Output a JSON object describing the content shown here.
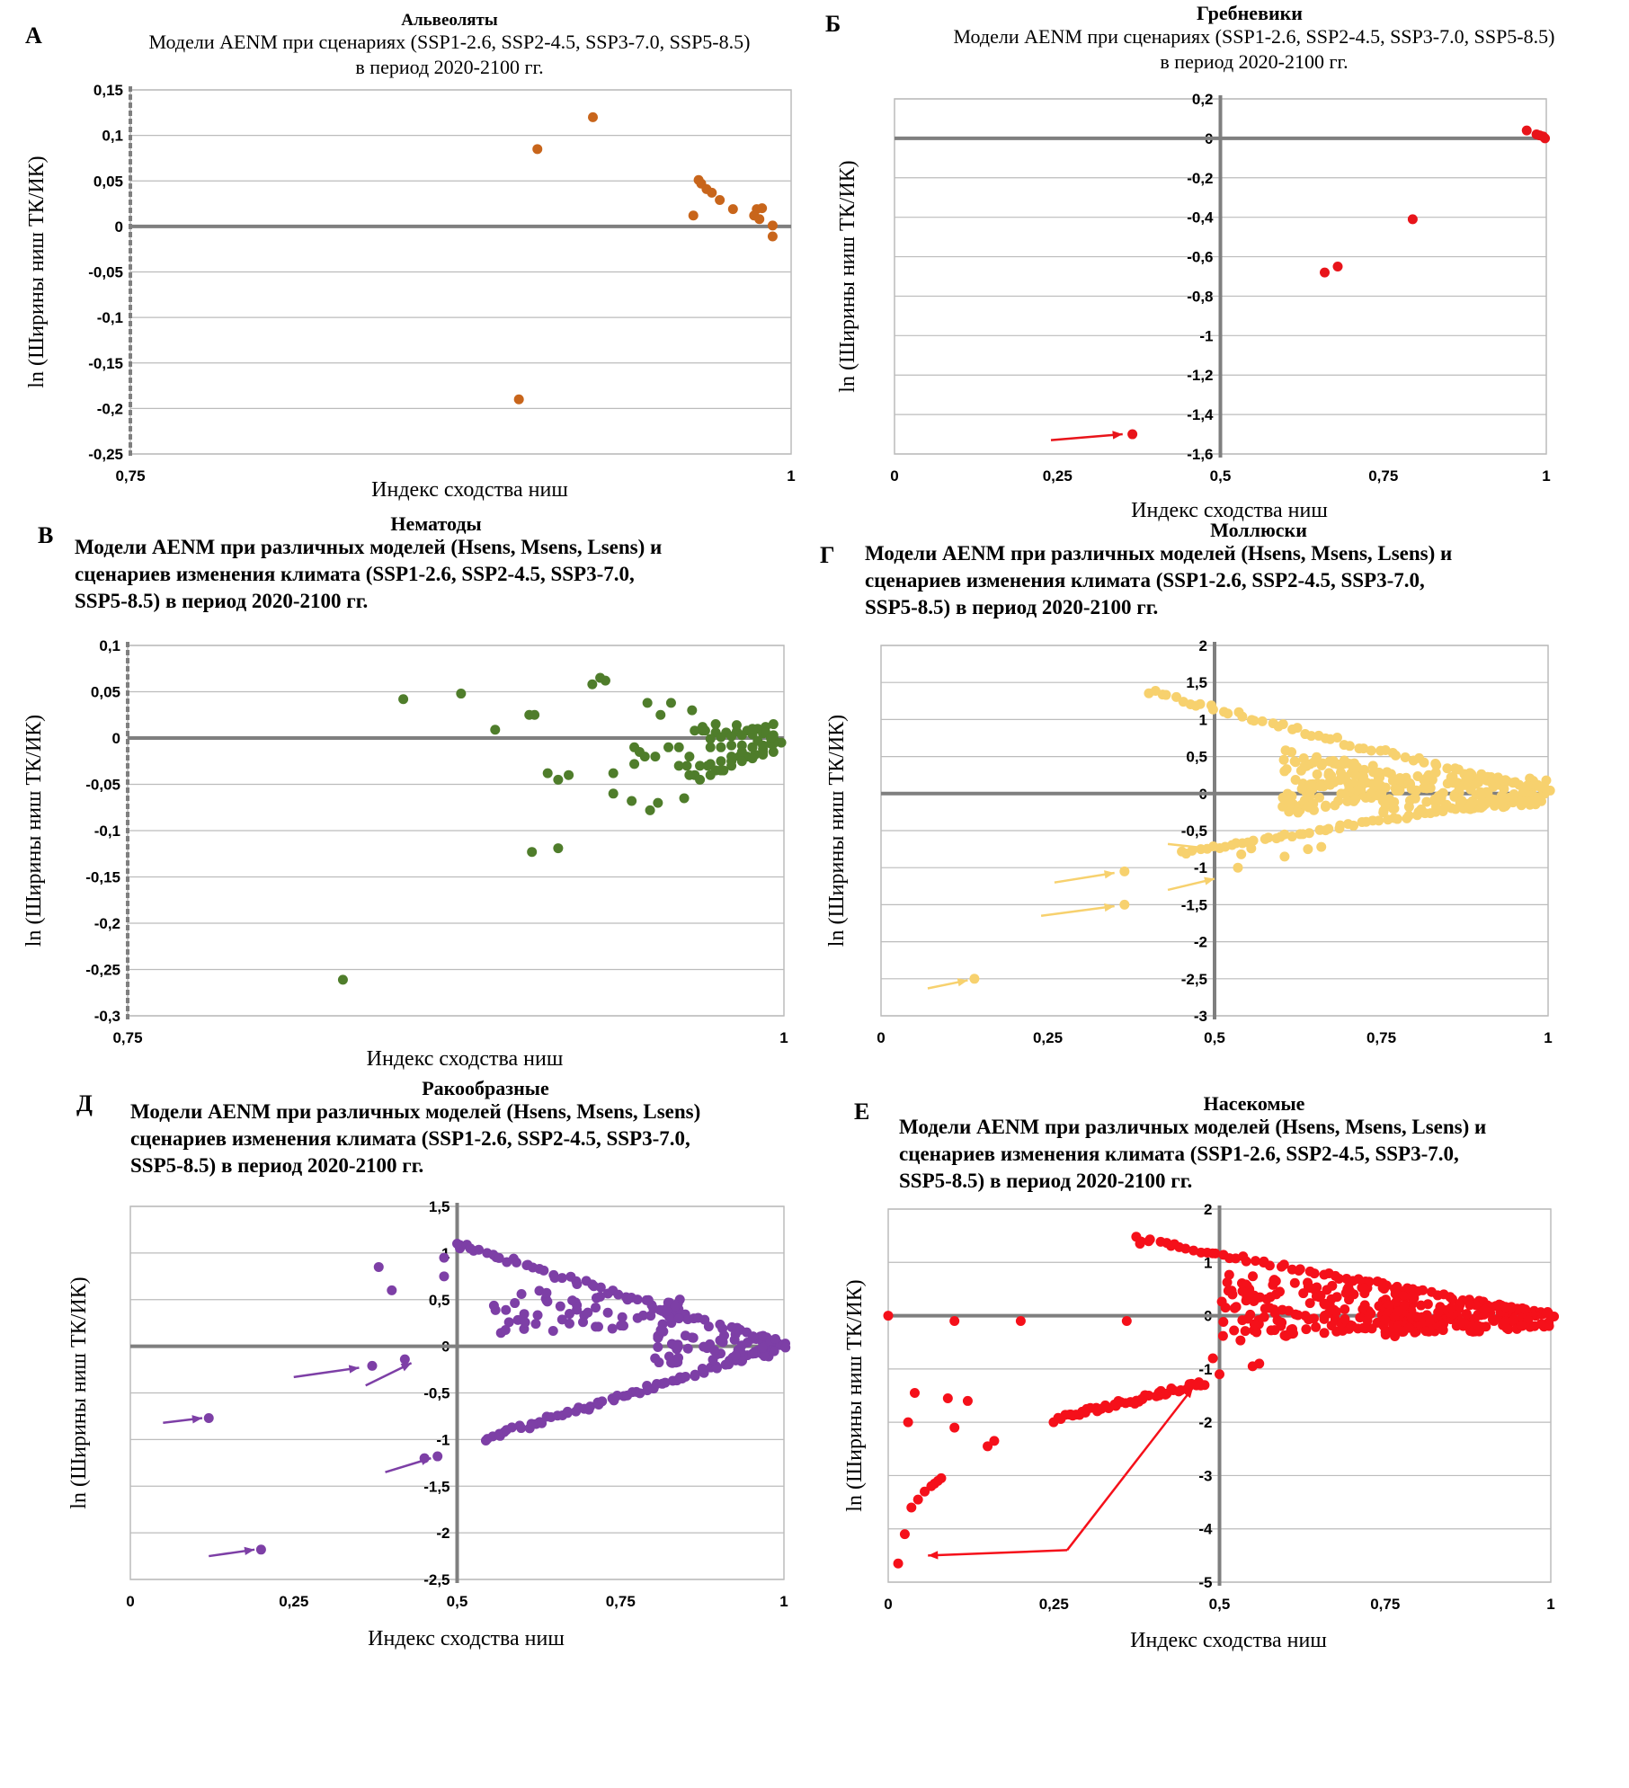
{
  "colors": {
    "gridline": "#bcbcbc",
    "axis": "#7f7f7f",
    "frame": "#bcbcbc",
    "alveolata": "#c8651b",
    "ctenophora": "#e8141a",
    "nematoda": "#4f7d2b",
    "mollusca": "#f7d16e",
    "crustacea": "#7d3fa6",
    "insecta": "#f5101a"
  },
  "chart_data": [
    {
      "panel": "А",
      "type": "scatter",
      "taxon": "Альвеоляты",
      "title_lines": [
        "Модели AENM при сценариях (SSP1-2.6, SSP2-4.5, SSP3-7.0, SSP5-8.5)",
        "в период 2020-2100 гг."
      ],
      "xlabel": "Индекс сходства ниш",
      "ylabel": "ln (Ширины ниш ТК/ИК)",
      "xlim": [
        0.75,
        1
      ],
      "ylim": [
        -0.25,
        0.15
      ],
      "x_ticks": [
        "0,75",
        "1"
      ],
      "y_ticks": [
        "0,15",
        "0,1",
        "0,05",
        "0",
        "-0,05",
        "-0,1",
        "-0,15",
        "-0,2",
        "-0,25"
      ],
      "y_axis_at_x": 0.75,
      "grid": true,
      "color_key": "alveolata",
      "x": [
        0.904,
        0.925,
        0.966,
        0.965,
        0.963,
        0.968,
        0.97,
        0.973,
        0.978,
        0.987,
        0.986,
        0.988,
        0.989,
        0.993,
        0.993,
        0.897
      ],
      "y": [
        0.085,
        0.12,
        0.047,
        0.051,
        0.012,
        0.041,
        0.037,
        0.029,
        0.019,
        0.019,
        0.012,
        0.008,
        0.02,
        0.001,
        -0.011,
        -0.19
      ],
      "arrows": []
    },
    {
      "panel": "Б",
      "type": "scatter",
      "taxon": "Гребневики",
      "title_lines": [
        "Модели AENM при сценариях (SSP1-2.6, SSP2-4.5, SSP3-7.0, SSP5-8.5)",
        "в период 2020-2100 гг."
      ],
      "xlabel": "Индекс сходства ниш",
      "ylabel": "ln (Ширины ниш ТК/ИК)",
      "xlim": [
        0,
        1
      ],
      "ylim": [
        -1.6,
        0.2
      ],
      "x_ticks": [
        "0",
        "0,25",
        "0,5",
        "0,75",
        "1"
      ],
      "y_ticks": [
        "0,2",
        "0",
        "-0,2",
        "-0,4",
        "-0,6",
        "-0,8",
        "-1",
        "-1,2",
        "-1,4",
        "-1,6"
      ],
      "y_axis_at_x": 0.5,
      "grid": true,
      "color_key": "ctenophora",
      "x": [
        0.97,
        0.985,
        0.99,
        0.995,
        0.998,
        0.795,
        0.68,
        0.66,
        0.365
      ],
      "y": [
        0.04,
        0.02,
        0.015,
        0.01,
        0.0,
        -0.41,
        -0.65,
        -0.68,
        -1.5
      ],
      "arrows": [
        [
          0.24,
          -1.53,
          0.35,
          -1.5
        ]
      ]
    },
    {
      "panel": "В",
      "type": "scatter",
      "taxon": "Нематоды",
      "title_lines": [
        "Модели AENM при различных моделей (Hsens, Msens, Lsens) и",
        "сценариев изменения климата (SSP1-2.6, SSP2-4.5, SSP3-7.0,",
        "SSP5-8.5) в период 2020-2100 гг."
      ],
      "xlabel": "Индекс сходства ниш",
      "ylabel": "ln (Ширины ниш ТК/ИК)",
      "xlim": [
        0.75,
        1
      ],
      "ylim": [
        -0.3,
        0.1
      ],
      "x_ticks": [
        "0,75",
        "1"
      ],
      "y_ticks": [
        "0,1",
        "0,05",
        "0",
        "-0,05",
        "-0,1",
        "-0,15",
        "-0,2",
        "-0,25",
        "-0,3"
      ],
      "y_axis_at_x": 0.75,
      "grid": true,
      "color_key": "nematoda",
      "x": [
        0.855,
        0.877,
        0.89,
        0.903,
        0.905,
        0.918,
        0.927,
        0.93,
        0.932,
        0.91,
        0.914,
        0.935,
        0.943,
        0.948,
        0.953,
        0.957,
        0.96,
        0.962,
        0.965,
        0.935,
        0.942,
        0.949,
        0.956,
        0.951,
        0.945,
        0.969,
        0.963,
        0.966,
        0.971,
        0.974,
        0.977,
        0.98,
        0.983,
        0.986,
        0.989,
        0.992,
        0.966,
        0.97,
        0.974,
        0.978,
        0.982,
        0.986,
        0.99,
        0.993,
        0.996,
        0.972,
        0.976,
        0.98,
        0.984,
        0.988,
        0.992,
        0.995,
        0.997,
        0.96,
        0.964,
        0.968,
        0.972,
        0.976,
        0.98,
        0.984,
        0.988,
        0.992,
        0.996,
        0.999,
        0.964,
        0.968,
        0.972,
        0.976,
        0.98,
        0.984,
        0.988,
        0.992,
        0.996,
        0.972,
        0.976,
        0.98,
        0.984,
        0.988,
        0.992,
        0.996,
        0.904,
        0.914,
        0.952,
        0.943,
        0.947,
        0.969,
        0.974,
        0.982,
        0.988,
        0.993,
        0.995,
        0.99
      ],
      "y": [
        0.042,
        0.048,
        0.009,
        0.025,
        0.025,
        -0.04,
        0.058,
        0.065,
        0.062,
        -0.038,
        -0.045,
        -0.06,
        -0.01,
        0.038,
        0.025,
        0.038,
        -0.01,
        -0.065,
        0.03,
        -0.038,
        -0.068,
        -0.078,
        -0.01,
        -0.02,
        -0.015,
        0.008,
        -0.03,
        -0.04,
        -0.03,
        -0.035,
        -0.035,
        -0.025,
        -0.02,
        -0.02,
        -0.018,
        -0.015,
        0.008,
        0.008,
        0.006,
        0.006,
        0.007,
        0.008,
        0.01,
        0.012,
        0.015,
        -0.01,
        -0.01,
        -0.008,
        -0.008,
        -0.01,
        -0.012,
        -0.006,
        -0.004,
        -0.03,
        -0.04,
        -0.045,
        -0.04,
        -0.035,
        -0.03,
        -0.025,
        -0.022,
        -0.018,
        -0.015,
        -0.005,
        -0.02,
        -0.03,
        -0.028,
        -0.025,
        -0.02,
        -0.015,
        -0.01,
        -0.008,
        -0.006,
        -0.001,
        0.001,
        0.002,
        0.003,
        0.004,
        0.005,
        0.003,
        -0.123,
        -0.119,
        -0.07,
        -0.028,
        -0.02,
        0.012,
        0.015,
        0.014,
        0.01,
        0.006,
        0.0,
        -0.003
      ],
      "extra": {
        "x": [
          0.832
        ],
        "y": [
          -0.261
        ]
      },
      "arrows": []
    },
    {
      "panel": "Г",
      "type": "scatter",
      "taxon": "Моллюски",
      "title_lines": [
        "Модели AENM при различных моделей (Hsens, Msens, Lsens) и",
        "сценариев изменения климата (SSP1-2.6, SSP2-4.5, SSP3-7.0,",
        "SSP5-8.5) в период 2020-2100 гг."
      ],
      "xlabel": "",
      "ylabel": "ln (Ширины ниш ТК/ИК)",
      "xlim": [
        0,
        1
      ],
      "ylim": [
        -3,
        2
      ],
      "x_ticks": [
        "0",
        "0,25",
        "0,5",
        "0,75",
        "1"
      ],
      "y_ticks": [
        "2",
        "1,5",
        "1",
        "0,5",
        "0",
        "-0,5",
        "-1",
        "-1,5",
        "-2",
        "-2,5",
        "-3"
      ],
      "y_axis_at_x": 0.5,
      "grid": true,
      "color_key": "mollusca",
      "generated_cloud": {
        "upper_edge": {
          "x_from": 0.4,
          "y_from": 1.37,
          "x_to": 1.0,
          "y_to": 0.0,
          "n": 60
        },
        "lower_edge": {
          "x_from": 0.45,
          "y_from": -0.8,
          "x_to": 1.0,
          "y_to": 0.0,
          "n": 60
        },
        "core": {
          "x_from": 0.6,
          "x_to": 0.75,
          "y_from": -0.3,
          "y_to": 0.6,
          "n": 120
        },
        "right_tail": {
          "x_from": 0.75,
          "x_to": 1.0,
          "y_from": -0.3,
          "y_to": 0.35,
          "n": 160
        }
      },
      "x": [
        0.14,
        0.365,
        0.365,
        0.535,
        0.54,
        0.555,
        0.605,
        0.64,
        0.66
      ],
      "y": [
        -2.5,
        -1.05,
        -1.5,
        -1.0,
        -0.82,
        -0.74,
        -0.85,
        -0.75,
        -0.72
      ],
      "arrows": [
        [
          0.07,
          -2.63,
          0.13,
          -2.52
        ],
        [
          0.26,
          -1.2,
          0.35,
          -1.07
        ],
        [
          0.24,
          -1.65,
          0.35,
          -1.52
        ],
        [
          0.43,
          -0.68,
          0.5,
          -0.75
        ],
        [
          0.43,
          -1.3,
          0.5,
          -1.15
        ]
      ]
    },
    {
      "panel": "Д",
      "type": "scatter",
      "taxon": "Ракообразные",
      "title_lines": [
        "Модели AENM при различных моделей (Hsens, Msens, Lsens)",
        "сценариев изменения климата (SSP1-2.6, SSP2-4.5, SSP3-7.0,",
        "SSP5-8.5) в период 2020-2100 гг."
      ],
      "xlabel": "Индекс сходства ниш",
      "ylabel": "ln (Ширины ниш ТК/ИК)",
      "xlim": [
        0,
        1
      ],
      "ylim": [
        -2.5,
        1.5
      ],
      "x_ticks": [
        "0",
        "0,25",
        "0,5",
        "0,75",
        "1"
      ],
      "y_ticks": [
        "1,5",
        "1",
        "0,5",
        "0",
        "-0,5",
        "-1",
        "-1,5",
        "-2",
        "-2,5"
      ],
      "y_axis_at_x": 0.5,
      "grid": true,
      "color_key": "crustacea",
      "generated_cloud": {
        "upper_edge": {
          "x_from": 0.5,
          "y_from": 1.1,
          "x_to": 1.0,
          "y_to": 0.0,
          "n": 60
        },
        "lower_edge": {
          "x_from": 0.54,
          "y_from": -1.0,
          "x_to": 1.0,
          "y_to": 0.0,
          "n": 70
        },
        "core": {
          "x_from": 0.55,
          "x_to": 0.85,
          "y_from": 0.1,
          "y_to": 0.65,
          "n": 60
        },
        "right_tail": {
          "x_from": 0.8,
          "x_to": 1.0,
          "y_from": -0.2,
          "y_to": 0.2,
          "n": 60
        }
      },
      "x": [
        0.12,
        0.2,
        0.37,
        0.42,
        0.45,
        0.47,
        0.48,
        0.38,
        0.4,
        0.48,
        0.5,
        0.52
      ],
      "y": [
        -0.77,
        -2.18,
        -0.21,
        -0.14,
        -1.2,
        -1.18,
        0.75,
        0.85,
        0.6,
        0.95,
        1.1,
        1.05
      ],
      "arrows": [
        [
          0.05,
          -0.82,
          0.11,
          -0.77
        ],
        [
          0.25,
          -0.33,
          0.35,
          -0.23
        ],
        [
          0.36,
          -0.42,
          0.43,
          -0.18
        ],
        [
          0.39,
          -1.35,
          0.46,
          -1.2
        ],
        [
          0.12,
          -2.25,
          0.19,
          -2.18
        ]
      ]
    },
    {
      "panel": "Е",
      "type": "scatter",
      "taxon": "Насекомые",
      "title_lines": [
        "Модели AENM при различных моделей (Hsens, Msens, Lsens) и",
        "сценариев изменения климата (SSP1-2.6, SSP2-4.5, SSP3-7.0,",
        "SSP5-8.5) в период 2020-2100 гг."
      ],
      "xlabel": "Индекс сходства ниш",
      "ylabel": "ln (Ширины ниш ТК/ИК)",
      "xlim": [
        0,
        1
      ],
      "ylim": [
        -5,
        2
      ],
      "x_ticks": [
        "0",
        "0,25",
        "0,5",
        "0,75",
        "1"
      ],
      "y_ticks": [
        "2",
        "1",
        "0",
        "-1",
        "-2",
        "-3",
        "-4",
        "-5"
      ],
      "y_axis_at_x": 0.5,
      "grid": true,
      "color_key": "insecta",
      "generated_cloud": {
        "upper_edge": {
          "x_from": 0.37,
          "y_from": 1.45,
          "x_to": 1.0,
          "y_to": 0.0,
          "n": 70
        },
        "lower_edge": {
          "x_from": 0.25,
          "y_from": -1.95,
          "x_to": 0.48,
          "y_to": -1.25,
          "n": 50
        },
        "core": {
          "x_from": 0.5,
          "x_to": 0.8,
          "y_from": -0.5,
          "y_to": 0.8,
          "n": 160
        },
        "right_tail": {
          "x_from": 0.75,
          "x_to": 1.0,
          "y_from": -0.4,
          "y_to": 0.3,
          "n": 160
        }
      },
      "x": [
        0.0,
        0.1,
        0.2,
        0.015,
        0.025,
        0.035,
        0.045,
        0.055,
        0.065,
        0.07,
        0.075,
        0.08,
        0.03,
        0.04,
        0.09,
        0.1,
        0.12,
        0.15,
        0.16,
        0.36,
        0.38,
        0.49,
        0.5,
        0.55,
        0.56
      ],
      "y": [
        0.0,
        -0.1,
        -0.1,
        -4.65,
        -4.1,
        -3.6,
        -3.45,
        -3.3,
        -3.2,
        -3.15,
        -3.1,
        -3.05,
        -2.0,
        -1.45,
        -1.55,
        -2.1,
        -1.6,
        -2.45,
        -2.35,
        -0.1,
        1.35,
        -0.8,
        -1.1,
        -0.95,
        -0.9
      ],
      "arrows": [
        [
          0.27,
          -4.4,
          0.06,
          -4.5
        ],
        [
          0.27,
          -4.4,
          0.46,
          -1.35
        ]
      ]
    }
  ],
  "panels": {
    "A": {
      "letter": "А",
      "taxon": "Альвеоляты"
    },
    "B": {
      "letter": "Б",
      "taxon": "Гребневики"
    },
    "C": {
      "letter": "В",
      "taxon": "Нематоды"
    },
    "D": {
      "letter": "Г",
      "taxon": "Моллюски"
    },
    "E": {
      "letter": "Д",
      "taxon": "Ракообразные"
    },
    "F": {
      "letter": "Е",
      "taxon": "Насекомые"
    }
  }
}
